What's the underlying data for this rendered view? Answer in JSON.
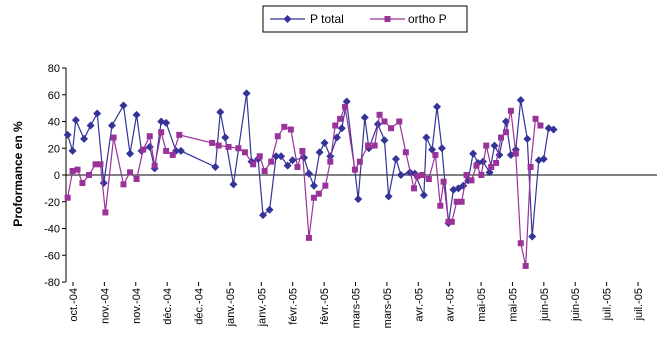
{
  "chart_data": {
    "type": "line",
    "ylabel": "Proformance en %",
    "ylim": [
      -80,
      80
    ],
    "yticks": [
      80,
      60,
      40,
      20,
      0,
      -20,
      -40,
      -60,
      -80
    ],
    "xtick_labels": [
      "oct.-04",
      "nov.-04",
      "nov.-04",
      "déc.-04",
      "déc.-04",
      "janv.-05",
      "janv.-05",
      "févr.-05",
      "févr.-05",
      "mars-05",
      "mars-05",
      "avr.-05",
      "avr.-05",
      "mai-05",
      "mai-05",
      "juin-05",
      "juin-05",
      "juil.-05",
      "juil.-05"
    ],
    "x_range": [
      0,
      72
    ],
    "legend_position": "top",
    "series": [
      {
        "name": "P total",
        "color": "#333399",
        "marker": "diamond",
        "points": [
          [
            0.2,
            30
          ],
          [
            0.8,
            18
          ],
          [
            1.2,
            41
          ],
          [
            2.2,
            27
          ],
          [
            3.0,
            37
          ],
          [
            3.8,
            46
          ],
          [
            4.6,
            -6
          ],
          [
            5.6,
            37
          ],
          [
            7.0,
            52
          ],
          [
            7.8,
            16
          ],
          [
            8.6,
            45
          ],
          [
            9.2,
            18
          ],
          [
            10.2,
            21
          ],
          [
            10.8,
            5
          ],
          [
            11.6,
            40
          ],
          [
            12.2,
            39
          ],
          [
            13.4,
            18
          ],
          [
            14.0,
            18
          ],
          [
            18.2,
            6
          ],
          [
            18.8,
            47
          ],
          [
            19.4,
            28
          ],
          [
            20.4,
            -7
          ],
          [
            22.0,
            61
          ],
          [
            22.6,
            10
          ],
          [
            23.4,
            12
          ],
          [
            24.0,
            -30
          ],
          [
            24.8,
            -26
          ],
          [
            25.6,
            14
          ],
          [
            26.2,
            14
          ],
          [
            27.0,
            7
          ],
          [
            27.6,
            11
          ],
          [
            29.0,
            13
          ],
          [
            29.6,
            1
          ],
          [
            30.2,
            -8
          ],
          [
            30.9,
            17
          ],
          [
            31.5,
            24
          ],
          [
            32.2,
            14
          ],
          [
            33.0,
            28
          ],
          [
            33.6,
            35
          ],
          [
            34.2,
            55
          ],
          [
            35.6,
            -18
          ],
          [
            36.4,
            43
          ],
          [
            36.9,
            20
          ],
          [
            38.0,
            38
          ],
          [
            38.8,
            26
          ],
          [
            39.3,
            -16
          ],
          [
            40.2,
            12
          ],
          [
            40.8,
            0
          ],
          [
            41.9,
            2
          ],
          [
            42.5,
            1
          ],
          [
            43.6,
            -15
          ],
          [
            43.9,
            28
          ],
          [
            44.6,
            19
          ],
          [
            45.2,
            51
          ],
          [
            45.8,
            20
          ],
          [
            46.6,
            -36
          ],
          [
            47.2,
            -11
          ],
          [
            47.8,
            -10
          ],
          [
            48.4,
            -8
          ],
          [
            49.0,
            -4
          ],
          [
            49.6,
            16
          ],
          [
            50.2,
            9
          ],
          [
            50.8,
            10
          ],
          [
            51.6,
            2
          ],
          [
            52.2,
            22
          ],
          [
            52.8,
            15
          ],
          [
            53.6,
            40
          ],
          [
            54.2,
            15
          ],
          [
            54.8,
            19
          ],
          [
            55.4,
            56
          ],
          [
            56.2,
            27
          ],
          [
            56.8,
            -46
          ],
          [
            57.6,
            11
          ],
          [
            58.2,
            12
          ],
          [
            58.8,
            35
          ],
          [
            59.4,
            34
          ]
        ]
      },
      {
        "name": "ortho P",
        "color": "#993399",
        "marker": "square",
        "points": [
          [
            0.2,
            -17
          ],
          [
            0.8,
            3
          ],
          [
            1.4,
            4
          ],
          [
            2.0,
            -6
          ],
          [
            2.8,
            0
          ],
          [
            3.6,
            8
          ],
          [
            4.2,
            8
          ],
          [
            4.8,
            -28
          ],
          [
            5.8,
            28
          ],
          [
            7.0,
            -7
          ],
          [
            7.8,
            2
          ],
          [
            8.6,
            -3
          ],
          [
            9.4,
            19
          ],
          [
            10.2,
            29
          ],
          [
            10.8,
            7
          ],
          [
            11.6,
            32
          ],
          [
            12.2,
            18
          ],
          [
            13.0,
            15
          ],
          [
            13.8,
            30
          ],
          [
            17.8,
            24
          ],
          [
            18.6,
            22
          ],
          [
            19.8,
            21
          ],
          [
            21.0,
            20
          ],
          [
            21.8,
            17
          ],
          [
            22.8,
            8
          ],
          [
            23.6,
            14
          ],
          [
            24.2,
            3
          ],
          [
            25.0,
            10
          ],
          [
            25.8,
            29
          ],
          [
            26.6,
            36
          ],
          [
            27.4,
            34
          ],
          [
            28.2,
            6
          ],
          [
            28.8,
            18
          ],
          [
            29.6,
            -47
          ],
          [
            30.2,
            -17
          ],
          [
            30.8,
            -14
          ],
          [
            31.6,
            -8
          ],
          [
            32.2,
            10
          ],
          [
            32.8,
            37
          ],
          [
            33.4,
            42
          ],
          [
            34.0,
            51
          ],
          [
            35.2,
            4
          ],
          [
            35.8,
            10
          ],
          [
            36.8,
            22
          ],
          [
            37.6,
            22
          ],
          [
            38.2,
            45
          ],
          [
            38.8,
            40
          ],
          [
            39.6,
            35
          ],
          [
            40.6,
            40
          ],
          [
            41.4,
            17
          ],
          [
            42.4,
            -10
          ],
          [
            42.8,
            -1
          ],
          [
            43.4,
            0
          ],
          [
            44.2,
            -3
          ],
          [
            45.0,
            15
          ],
          [
            45.6,
            -23
          ],
          [
            46.0,
            -5
          ],
          [
            46.6,
            -35
          ],
          [
            47.0,
            -35
          ],
          [
            47.6,
            -20
          ],
          [
            48.2,
            -20
          ],
          [
            48.8,
            0
          ],
          [
            49.4,
            -4
          ],
          [
            50.0,
            7
          ],
          [
            50.6,
            0
          ],
          [
            51.2,
            22
          ],
          [
            51.8,
            6
          ],
          [
            52.4,
            9
          ],
          [
            53.0,
            28
          ],
          [
            53.6,
            32
          ],
          [
            54.2,
            48
          ],
          [
            54.8,
            16
          ],
          [
            55.4,
            -51
          ],
          [
            56.0,
            -68
          ],
          [
            56.6,
            6
          ],
          [
            57.2,
            42
          ],
          [
            57.8,
            37
          ]
        ]
      }
    ]
  }
}
